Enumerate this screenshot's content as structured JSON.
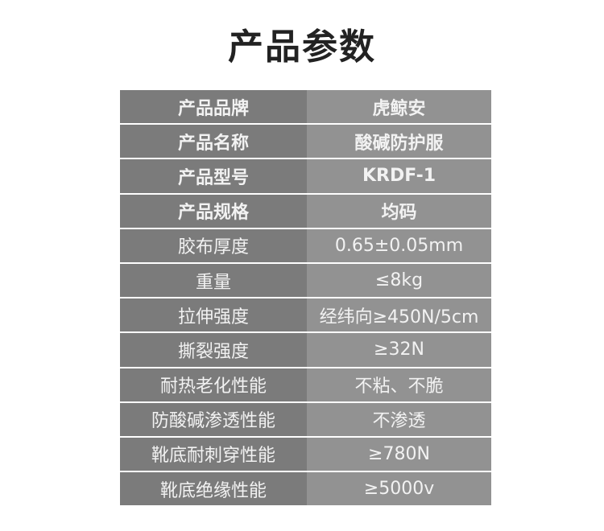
{
  "title": "产品参数",
  "rows": [
    {
      "label": "产品品牌",
      "value": "虎鲸安"
    },
    {
      "label": "产品名称",
      "value": "酸碱防护服"
    },
    {
      "label": "产品型号",
      "value": "KRDF-1"
    },
    {
      "label": "产品规格",
      "value": "均码"
    },
    {
      "label": "胶布厚度",
      "value": "0.65±0.05mm"
    },
    {
      "label": "重量",
      "value": "≤8kg"
    },
    {
      "label": "拉伸强度",
      "value": "经纬向≥450N/5cm"
    },
    {
      "label": "撕裂强度",
      "value": "≥32N"
    },
    {
      "label": "耐热老化性能",
      "value": "不粘、不脆"
    },
    {
      "label": "防酸碱渗透性能",
      "value": "不渗透"
    },
    {
      "label": "靴底耐刺穿性能",
      "value": "≥780N"
    },
    {
      "label": "靴底绝缘性能",
      "value": "≥5000v"
    }
  ],
  "colors": {
    "label_bg": "#7b7b7b",
    "value_bg": "#929292",
    "text": "#f2f2f2"
  }
}
